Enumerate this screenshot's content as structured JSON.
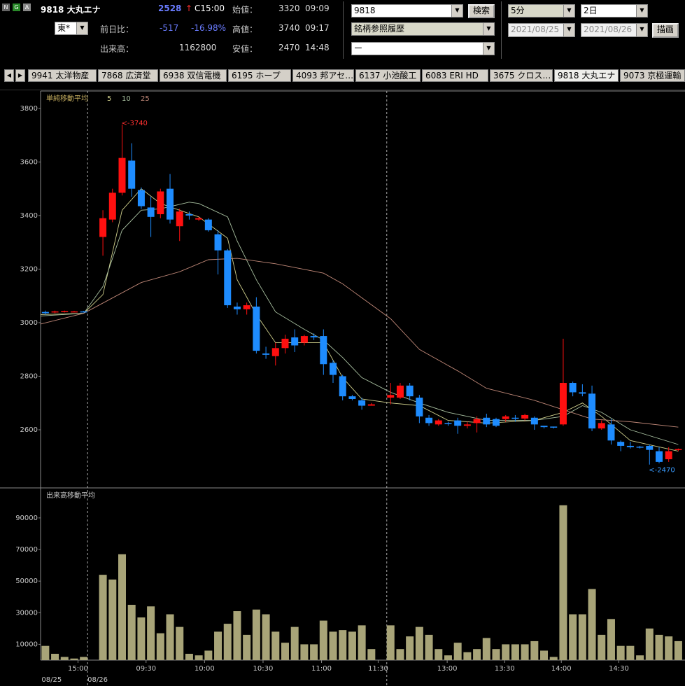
{
  "header": {
    "code_name": "9818 大丸エナ",
    "price": "2528",
    "arrow": "↑",
    "time": "C15:00",
    "open_label": "始値：",
    "open": "3320",
    "open_time": "09:09",
    "high_label": "高値：",
    "high": "3740",
    "high_time": "09:17",
    "low_label": "安値：",
    "low": "2470",
    "low_time": "14:48",
    "change_label": "前日比：",
    "change": "-517",
    "change_pct": "-16.98%",
    "volume_label": "出来高：",
    "volume": "1162800",
    "market": "東*",
    "icons": [
      "N",
      "G",
      "A"
    ],
    "search_input": "9818",
    "search_button": "検索",
    "history_select": "銘柄参照履歴",
    "blank_select": "ー",
    "interval": "5分",
    "span": "2日",
    "date_from": "2021/08/25",
    "date_to": "2021/08/26",
    "draw_button": "描画"
  },
  "tabs": [
    "9941 太洋物産",
    "7868 広済堂",
    "6938 双信電機",
    "6195 ホープ",
    "4093 邦アセ…",
    "6137 小池酸工",
    "6083 ERI HD",
    "3675 クロス…",
    "9818 大丸エナ",
    "9073 京極運輸"
  ],
  "chart_data": [
    {
      "type": "candlestick",
      "legend_title": "単純移動平均",
      "up_color": "#ff1010",
      "down_color": "#1e8cff",
      "xlim": [
        -0.5,
        66.7
      ],
      "ylim": [
        2383,
        3865
      ],
      "yticks": [
        2600,
        2800,
        3000,
        3200,
        3400,
        3600,
        3800
      ],
      "xticks": [
        {
          "value": 3.4,
          "label": "15:00"
        },
        {
          "value": 10.5,
          "label": "09:30"
        },
        {
          "value": 16.6,
          "label": "10:00"
        },
        {
          "value": 22.7,
          "label": "10:30"
        },
        {
          "value": 28.8,
          "label": "11:00"
        },
        {
          "value": 34.7,
          "label": "11:30"
        },
        {
          "value": 41.9,
          "label": "13:00"
        },
        {
          "value": 47.9,
          "label": "13:30"
        },
        {
          "value": 53.8,
          "label": "14:00"
        },
        {
          "value": 59.8,
          "label": "14:30"
        }
      ],
      "date_labels": [
        {
          "value": -0.4,
          "label": "08/25"
        },
        {
          "value": 4.4,
          "label": "08/26"
        }
      ],
      "session_breaks": [
        4.4,
        35.6
      ],
      "open": [
        3040,
        3038,
        3040,
        3040,
        3042,
        null,
        3320,
        3385,
        3485,
        3605,
        3495,
        3430,
        3405,
        3500,
        3360,
        3405,
        3385,
        3385,
        3330,
        3270,
        3060,
        3050,
        3060,
        2885,
        2875,
        2905,
        2945,
        2925,
        2950,
        2950,
        2850,
        2800,
        2725,
        2710,
        2690,
        null,
        2720,
        2720,
        2765,
        2720,
        2645,
        2620,
        2625,
        2635,
        2615,
        2625,
        2645,
        2640,
        2640,
        2645,
        2642,
        2645,
        2615,
        2612,
        2620,
        2775,
        2740,
        2735,
        2605,
        2620,
        2555,
        2540,
        2537,
        2540,
        2520,
        2490,
        2525
      ],
      "high": [
        3045,
        3045,
        3045,
        3044,
        3044,
        null,
        3420,
        3500,
        3740,
        3670,
        3505,
        3470,
        3500,
        3555,
        3425,
        3415,
        3395,
        3390,
        3345,
        3275,
        3075,
        3075,
        3095,
        2910,
        2925,
        2955,
        2975,
        2955,
        2960,
        2975,
        2860,
        2805,
        2730,
        2720,
        2700,
        null,
        2775,
        2775,
        2775,
        2730,
        2655,
        2640,
        2630,
        2645,
        2630,
        2650,
        2660,
        2645,
        2655,
        2655,
        2660,
        2650,
        2615,
        2612,
        2940,
        2780,
        2770,
        2765,
        2635,
        2640,
        2560,
        2555,
        2540,
        2545,
        2535,
        2535,
        2530
      ],
      "low": [
        3030,
        3035,
        3038,
        3040,
        3038,
        null,
        3250,
        3375,
        3475,
        3470,
        3425,
        3320,
        3390,
        3370,
        3305,
        3385,
        3380,
        3340,
        3180,
        3055,
        3030,
        3030,
        2885,
        2865,
        2840,
        2885,
        2890,
        2915,
        2935,
        2805,
        2775,
        2710,
        2710,
        2675,
        2690,
        null,
        2695,
        2715,
        2710,
        2625,
        2615,
        2615,
        2615,
        2585,
        2605,
        2590,
        2610,
        2610,
        2630,
        2630,
        2635,
        2600,
        2605,
        2605,
        2615,
        2725,
        2725,
        2595,
        2600,
        2545,
        2520,
        2530,
        2530,
        2470,
        2475,
        2480,
        2520
      ],
      "close": [
        3035,
        3042,
        3043,
        3042,
        3040,
        null,
        3390,
        3485,
        3615,
        3500,
        3435,
        3395,
        3490,
        3385,
        3415,
        3400,
        3390,
        3345,
        3270,
        3065,
        3050,
        3065,
        2895,
        2880,
        2905,
        2940,
        2915,
        2950,
        2945,
        2845,
        2805,
        2725,
        2715,
        2690,
        2695,
        null,
        2730,
        2765,
        2725,
        2650,
        2625,
        2635,
        2622,
        2615,
        2620,
        2640,
        2620,
        2615,
        2650,
        2642,
        2655,
        2620,
        2610,
        2608,
        2775,
        2740,
        2735,
        2605,
        2625,
        2560,
        2540,
        2535,
        2535,
        2525,
        2480,
        2520,
        2528
      ],
      "moving_averages": [
        {
          "name": "5",
          "color": "#d0d08c",
          "x": [
            -0.5,
            4,
            6,
            8,
            10,
            12,
            14,
            16,
            19,
            20,
            22,
            24,
            27,
            29,
            31,
            33,
            36,
            39,
            42,
            46,
            51,
            54,
            56,
            58,
            61,
            66
          ],
          "values": [
            3030,
            3035,
            3105,
            3420,
            3500,
            3445,
            3420,
            3395,
            3315,
            3160,
            3030,
            2925,
            2925,
            2925,
            2795,
            2715,
            2700,
            2690,
            2635,
            2625,
            2635,
            2665,
            2700,
            2650,
            2560,
            2520
          ]
        },
        {
          "name": "10",
          "color": "#a8c0a0",
          "x": [
            -0.5,
            4,
            6,
            8,
            10,
            12,
            15,
            16,
            19,
            20,
            22,
            24,
            27,
            29,
            31,
            33,
            36,
            39,
            42,
            46,
            51,
            54,
            56,
            58,
            61,
            66
          ],
          "values": [
            3025,
            3035,
            3135,
            3345,
            3420,
            3425,
            3450,
            3445,
            3395,
            3305,
            3160,
            3040,
            2975,
            2935,
            2870,
            2795,
            2740,
            2700,
            2665,
            2635,
            2635,
            2650,
            2690,
            2665,
            2600,
            2545
          ]
        },
        {
          "name": "25",
          "color": "#c08878",
          "x": [
            -0.5,
            4,
            10,
            14,
            17,
            20,
            24,
            29,
            31,
            36,
            39,
            43,
            46,
            51,
            54,
            57,
            61,
            66
          ],
          "values": [
            2995,
            3035,
            3150,
            3190,
            3235,
            3240,
            3220,
            3185,
            3145,
            3015,
            2900,
            2820,
            2755,
            2710,
            2675,
            2640,
            2630,
            2610
          ]
        }
      ],
      "annotations": [
        {
          "text": "<-3740",
          "x": 8,
          "y": 3740,
          "color": "#ff3030"
        },
        {
          "text": "<-2470",
          "x": 63,
          "y": 2470,
          "color": "#3a9cff"
        }
      ]
    },
    {
      "type": "bar",
      "title": "出来高移動平均",
      "color": "#a8a478",
      "ylim": [
        0,
        109000
      ],
      "yticks": [
        10000,
        30000,
        50000,
        70000,
        90000
      ],
      "values": [
        9000,
        4000,
        2000,
        1000,
        2000,
        null,
        54000,
        51000,
        67000,
        35000,
        27000,
        34000,
        17000,
        29000,
        21000,
        4000,
        3000,
        6000,
        18000,
        23000,
        31000,
        16000,
        32000,
        29000,
        18000,
        11000,
        21000,
        10000,
        10000,
        25000,
        18000,
        19000,
        18000,
        22000,
        7000,
        null,
        22000,
        7000,
        15000,
        21000,
        16000,
        7000,
        3000,
        11000,
        5000,
        7000,
        14000,
        7000,
        10000,
        10000,
        10000,
        12000,
        6000,
        2000,
        98000,
        29000,
        29000,
        45000,
        16000,
        26000,
        9000,
        9000,
        3000,
        20000,
        16000,
        15000,
        12000
      ]
    }
  ]
}
